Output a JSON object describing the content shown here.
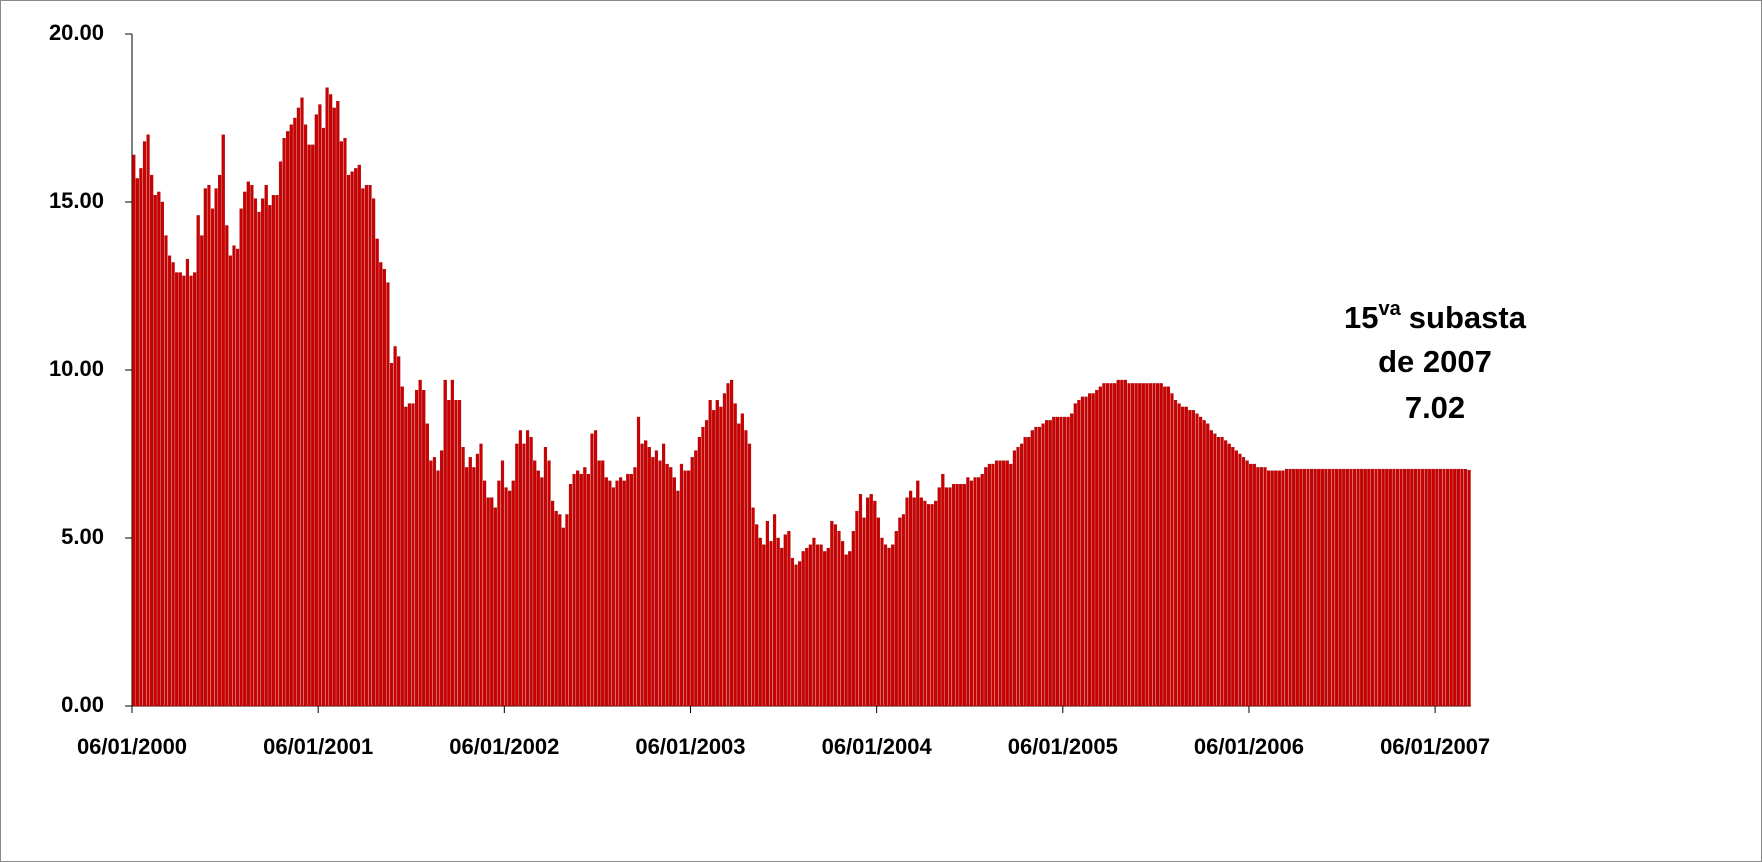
{
  "chart_data": {
    "type": "bar",
    "annotation": {
      "lead": "15",
      "superscript": "va",
      "rest": "subasta",
      "line2": "de 2007",
      "line3": "7.02"
    },
    "color": "#cc0000",
    "ylim": [
      0,
      20
    ],
    "yticks": [
      {
        "value": 0,
        "label": "0.00"
      },
      {
        "value": 5,
        "label": "5.00"
      },
      {
        "value": 10,
        "label": "10.00"
      },
      {
        "value": 15,
        "label": "15.00"
      },
      {
        "value": 20,
        "label": "20.00"
      }
    ],
    "categories": [
      "06/01/2000",
      null,
      null,
      null,
      null,
      null,
      null,
      null,
      null,
      null,
      null,
      null,
      null,
      null,
      null,
      null,
      null,
      null,
      null,
      null,
      null,
      null,
      null,
      null,
      null,
      null,
      null,
      null,
      null,
      null,
      null,
      null,
      null,
      null,
      null,
      null,
      null,
      null,
      null,
      null,
      null,
      null,
      null,
      null,
      null,
      null,
      null,
      null,
      null,
      null,
      null,
      null,
      "06/01/2001",
      null,
      null,
      null,
      null,
      null,
      null,
      null,
      null,
      null,
      null,
      null,
      null,
      null,
      null,
      null,
      null,
      null,
      null,
      null,
      null,
      null,
      null,
      null,
      null,
      null,
      null,
      null,
      null,
      null,
      null,
      null,
      null,
      null,
      null,
      null,
      null,
      null,
      null,
      null,
      null,
      null,
      null,
      null,
      null,
      null,
      null,
      null,
      null,
      null,
      null,
      null,
      "06/01/2002",
      null,
      null,
      null,
      null,
      null,
      null,
      null,
      null,
      null,
      null,
      null,
      null,
      null,
      null,
      null,
      null,
      null,
      null,
      null,
      null,
      null,
      null,
      null,
      null,
      null,
      null,
      null,
      null,
      null,
      null,
      null,
      null,
      null,
      null,
      null,
      null,
      null,
      null,
      null,
      null,
      null,
      null,
      null,
      null,
      null,
      null,
      null,
      null,
      null,
      null,
      null,
      "06/01/2003",
      null,
      null,
      null,
      null,
      null,
      null,
      null,
      null,
      null,
      null,
      null,
      null,
      null,
      null,
      null,
      null,
      null,
      null,
      null,
      null,
      null,
      null,
      null,
      null,
      null,
      null,
      null,
      null,
      null,
      null,
      null,
      null,
      null,
      null,
      null,
      null,
      null,
      null,
      null,
      null,
      null,
      null,
      null,
      null,
      null,
      null,
      null,
      null,
      null,
      null,
      null,
      "06/01/2004",
      null,
      null,
      null,
      null,
      null,
      null,
      null,
      null,
      null,
      null,
      null,
      null,
      null,
      null,
      null,
      null,
      null,
      null,
      null,
      null,
      null,
      null,
      null,
      null,
      null,
      null,
      null,
      null,
      null,
      null,
      null,
      null,
      null,
      null,
      null,
      null,
      null,
      null,
      null,
      null,
      null,
      null,
      null,
      null,
      null,
      null,
      null,
      null,
      null,
      null,
      null,
      "06/01/2005",
      null,
      null,
      null,
      null,
      null,
      null,
      null,
      null,
      null,
      null,
      null,
      null,
      null,
      null,
      null,
      null,
      null,
      null,
      null,
      null,
      null,
      null,
      null,
      null,
      null,
      null,
      null,
      null,
      null,
      null,
      null,
      null,
      null,
      null,
      null,
      null,
      null,
      null,
      null,
      null,
      null,
      null,
      null,
      null,
      null,
      null,
      null,
      null,
      null,
      null,
      null,
      "06/01/2006",
      null,
      null,
      null,
      null,
      null,
      null,
      null,
      null,
      null,
      null,
      null,
      null,
      null,
      null,
      null,
      null,
      null,
      null,
      null,
      null,
      null,
      null,
      null,
      null,
      null,
      null,
      null,
      null,
      null,
      null,
      null,
      null,
      null,
      null,
      null,
      null,
      null,
      null,
      null,
      null,
      null,
      null,
      null,
      null,
      null,
      null,
      null,
      null,
      null,
      null,
      null,
      "06/01/2007",
      null,
      null,
      null,
      null,
      null,
      null,
      null,
      null,
      null
    ],
    "values": [
      16.4,
      15.7,
      16.0,
      16.8,
      17.0,
      15.8,
      15.2,
      15.3,
      15.0,
      14.0,
      13.4,
      13.2,
      12.9,
      12.9,
      12.8,
      13.3,
      12.8,
      12.9,
      14.6,
      14.0,
      15.4,
      15.5,
      14.8,
      15.4,
      15.8,
      17.0,
      14.3,
      13.4,
      13.7,
      13.6,
      14.8,
      15.3,
      15.6,
      15.5,
      15.1,
      14.7,
      15.1,
      15.5,
      14.9,
      15.2,
      15.2,
      16.2,
      16.9,
      17.1,
      17.3,
      17.5,
      17.8,
      18.1,
      17.3,
      16.7,
      16.7,
      17.6,
      17.9,
      17.2,
      18.4,
      18.2,
      17.8,
      18.0,
      16.8,
      16.9,
      15.8,
      15.9,
      16.0,
      16.1,
      15.4,
      15.5,
      15.5,
      15.1,
      13.9,
      13.2,
      13.0,
      12.6,
      10.2,
      10.7,
      10.4,
      9.5,
      8.9,
      9.0,
      9.0,
      9.4,
      9.7,
      9.4,
      8.4,
      7.3,
      7.4,
      7.0,
      7.6,
      9.7,
      9.1,
      9.7,
      9.1,
      9.1,
      7.7,
      7.1,
      7.4,
      7.1,
      7.5,
      7.8,
      6.7,
      6.2,
      6.2,
      5.9,
      6.7,
      7.3,
      6.5,
      6.4,
      6.7,
      7.8,
      8.2,
      7.8,
      8.2,
      8.0,
      7.3,
      7.0,
      6.8,
      7.7,
      7.3,
      6.1,
      5.8,
      5.7,
      5.3,
      5.7,
      6.6,
      6.9,
      7.0,
      6.9,
      7.1,
      6.9,
      8.1,
      8.2,
      7.3,
      7.3,
      6.8,
      6.7,
      6.5,
      6.7,
      6.8,
      6.7,
      6.9,
      6.9,
      7.1,
      8.6,
      7.8,
      7.9,
      7.7,
      7.4,
      7.6,
      7.3,
      7.8,
      7.2,
      7.1,
      6.8,
      6.4,
      7.2,
      7.0,
      7.0,
      7.4,
      7.6,
      8.0,
      8.3,
      8.5,
      9.1,
      8.8,
      9.1,
      8.9,
      9.3,
      9.6,
      9.7,
      9.0,
      8.4,
      8.7,
      8.2,
      7.8,
      5.9,
      5.4,
      5.0,
      4.8,
      5.5,
      4.9,
      5.7,
      5.0,
      4.7,
      5.1,
      5.2,
      4.4,
      4.2,
      4.3,
      4.6,
      4.7,
      4.8,
      5.0,
      4.8,
      4.8,
      4.6,
      4.7,
      5.5,
      5.4,
      5.2,
      4.9,
      4.5,
      4.6,
      5.2,
      5.8,
      6.3,
      5.6,
      6.2,
      6.3,
      6.1,
      5.6,
      5.0,
      4.8,
      4.7,
      4.8,
      5.2,
      5.6,
      5.7,
      6.2,
      6.4,
      6.2,
      6.7,
      6.2,
      6.1,
      6.0,
      6.0,
      6.1,
      6.5,
      6.9,
      6.5,
      6.5,
      6.6,
      6.6,
      6.6,
      6.6,
      6.8,
      6.7,
      6.8,
      6.8,
      6.9,
      7.1,
      7.2,
      7.2,
      7.3,
      7.3,
      7.3,
      7.3,
      7.2,
      7.6,
      7.7,
      7.8,
      8.0,
      8.0,
      8.2,
      8.3,
      8.3,
      8.4,
      8.5,
      8.5,
      8.6,
      8.6,
      8.6,
      8.6,
      8.6,
      8.7,
      9.0,
      9.1,
      9.2,
      9.2,
      9.3,
      9.3,
      9.4,
      9.5,
      9.6,
      9.6,
      9.6,
      9.6,
      9.7,
      9.7,
      9.7,
      9.6,
      9.6,
      9.6,
      9.6,
      9.6,
      9.6,
      9.6,
      9.6,
      9.6,
      9.6,
      9.5,
      9.5,
      9.3,
      9.1,
      9.0,
      8.9,
      8.9,
      8.8,
      8.8,
      8.7,
      8.6,
      8.5,
      8.4,
      8.2,
      8.1,
      8.0,
      8.0,
      7.9,
      7.8,
      7.7,
      7.6,
      7.5,
      7.4,
      7.3,
      7.2,
      7.2,
      7.1,
      7.1,
      7.1,
      7.0,
      7.0,
      7.0,
      7.0,
      7.0,
      7.05,
      7.05,
      7.05,
      7.05,
      7.05,
      7.05,
      7.05,
      7.05,
      7.05,
      7.05,
      7.05,
      7.05,
      7.05,
      7.05,
      7.05,
      7.05,
      7.05,
      7.05,
      7.05,
      7.05,
      7.05,
      7.05,
      7.05,
      7.05,
      7.05,
      7.05,
      7.05,
      7.05,
      7.05,
      7.05,
      7.05,
      7.05,
      7.05,
      7.05,
      7.05,
      7.05,
      7.05,
      7.05,
      7.05,
      7.05,
      7.05,
      7.05,
      7.05,
      7.05,
      7.05,
      7.05,
      7.05,
      7.05,
      7.05,
      7.05,
      7.05,
      7.02
    ]
  }
}
